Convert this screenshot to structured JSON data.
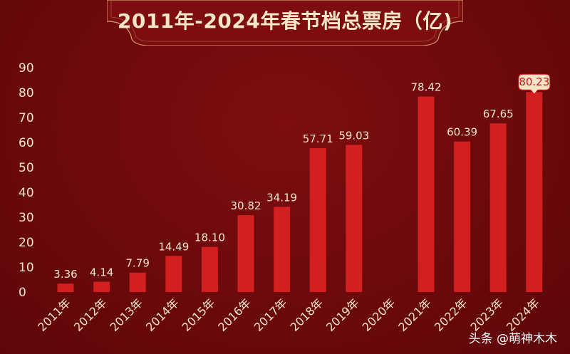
{
  "chart_data": {
    "type": "bar",
    "title": "2011年-2024年春节档总票房（亿)",
    "categories": [
      "2011年",
      "2012年",
      "2013年",
      "2014年",
      "2015年",
      "2016年",
      "2017年",
      "2018年",
      "2019年",
      "2020年",
      "2021年",
      "2022年",
      "2023年",
      "2024年"
    ],
    "values": [
      3.36,
      4.14,
      7.79,
      14.49,
      18.1,
      30.82,
      34.19,
      57.71,
      59.03,
      null,
      78.42,
      60.39,
      67.65,
      80.23
    ],
    "value_labels": [
      "3.36",
      "4.14",
      "7.79",
      "14.49",
      "18.10",
      "30.82",
      "34.19",
      "57.71",
      "59.03",
      "",
      "78.42",
      "60.39",
      "67.65",
      "80.23"
    ],
    "highlighted_label_index": 13,
    "ylim": [
      0,
      90
    ],
    "yticks": [
      "0",
      "10",
      "20",
      "30",
      "40",
      "50",
      "60",
      "70",
      "80",
      "90"
    ],
    "grid": false,
    "bar_color": "#d21f1f",
    "background_color": "#6e0a0c",
    "text_color": "#f6e6c8"
  },
  "watermark": "头条 @萌神木木"
}
